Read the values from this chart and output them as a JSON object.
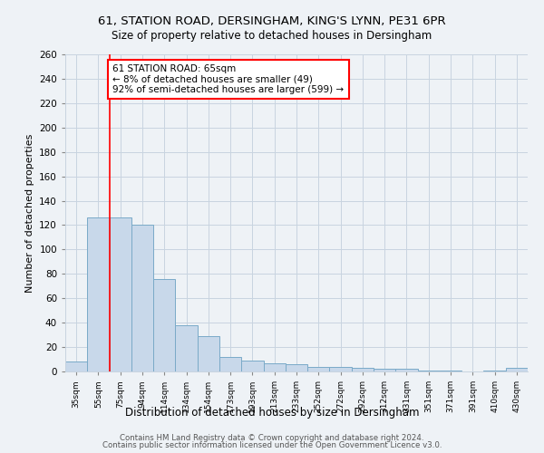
{
  "title1": "61, STATION ROAD, DERSINGHAM, KING'S LYNN, PE31 6PR",
  "title2": "Size of property relative to detached houses in Dersingham",
  "xlabel": "Distribution of detached houses by size in Dersingham",
  "ylabel": "Number of detached properties",
  "categories": [
    "35sqm",
    "55sqm",
    "75sqm",
    "94sqm",
    "114sqm",
    "134sqm",
    "154sqm",
    "173sqm",
    "193sqm",
    "213sqm",
    "233sqm",
    "252sqm",
    "272sqm",
    "292sqm",
    "312sqm",
    "331sqm",
    "351sqm",
    "371sqm",
    "391sqm",
    "410sqm",
    "430sqm"
  ],
  "values": [
    8,
    126,
    126,
    120,
    76,
    38,
    29,
    12,
    9,
    7,
    6,
    4,
    4,
    3,
    2,
    2,
    1,
    1,
    0,
    1,
    3
  ],
  "bar_color": "#c8d8ea",
  "bar_edge_color": "#7aaac8",
  "red_line_x": 1.5,
  "annotation_text": "61 STATION ROAD: 65sqm\n← 8% of detached houses are smaller (49)\n92% of semi-detached houses are larger (599) →",
  "annotation_box_color": "white",
  "annotation_box_edge_color": "red",
  "ylim": [
    0,
    260
  ],
  "yticks": [
    0,
    20,
    40,
    60,
    80,
    100,
    120,
    140,
    160,
    180,
    200,
    220,
    240,
    260
  ],
  "footer1": "Contains HM Land Registry data © Crown copyright and database right 2024.",
  "footer2": "Contains public sector information licensed under the Open Government Licence v3.0.",
  "bg_color": "#eef2f6",
  "grid_color": "#c8d4e0"
}
